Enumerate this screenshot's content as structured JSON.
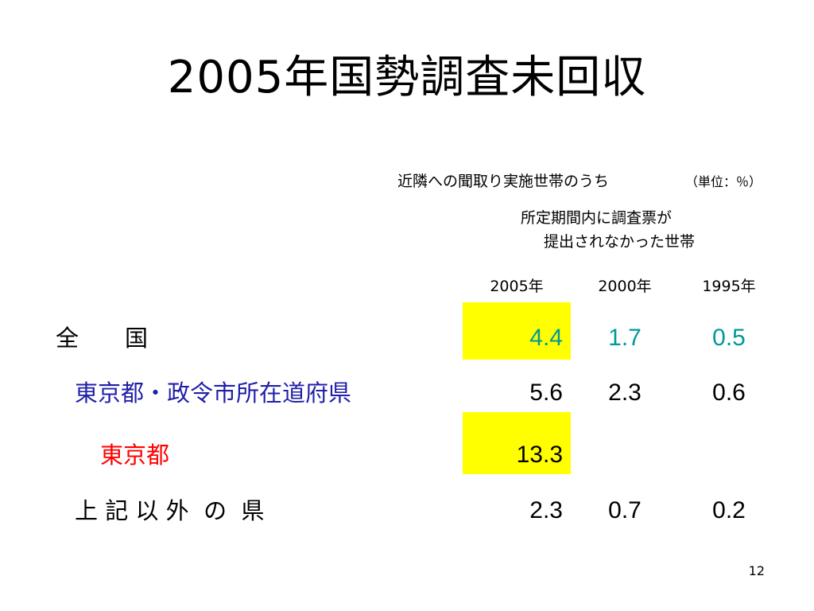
{
  "slide": {
    "title": "2005年国勢調査未回収",
    "page_number": "12"
  },
  "table": {
    "subtitle": "近隣への聞取り実施世帯のうち",
    "unit": "（単位：％）",
    "description": [
      "所定期間内に調査票が",
      "提出されなかった世帯"
    ],
    "columns": [
      "2005年",
      "2000年",
      "1995年"
    ],
    "rows": [
      {
        "label": "全　　国",
        "label_color": "#000000",
        "values": [
          "4.4",
          "1.7",
          "0.5"
        ],
        "value_color": "#009999",
        "highlight_2005": true
      },
      {
        "label": "東京都・政令市所在道府県",
        "label_color": "#1f1fa8",
        "values": [
          "5.6",
          "2.3",
          "0.6"
        ],
        "value_color": "#000000",
        "highlight_2005": false
      },
      {
        "label": "東京都",
        "label_color": "#ff0000",
        "values": [
          "13.3",
          "",
          ""
        ],
        "value_color": "#000000",
        "highlight_2005": true
      },
      {
        "label": "上 記 以 外  の  県",
        "label_color": "#000000",
        "values": [
          "2.3",
          "0.7",
          "0.2"
        ],
        "value_color": "#000000",
        "highlight_2005": false
      }
    ]
  },
  "colors": {
    "highlight": "#ffff00"
  }
}
